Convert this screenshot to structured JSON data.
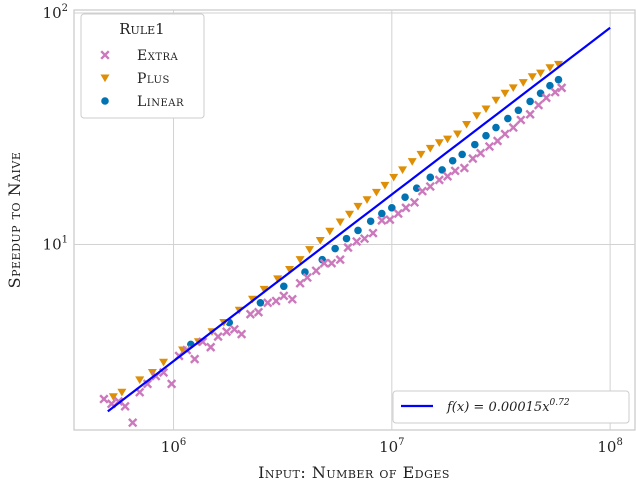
{
  "chart_data": {
    "type": "scatter",
    "x_scale": "log",
    "y_scale": "log",
    "xlim": [
      350000,
      130000000
    ],
    "ylim": [
      1.58,
      103
    ],
    "xlabel": "Input: Number of Edges",
    "ylabel": "Speedup to Naive",
    "x_ticks": [
      {
        "value": 1000000,
        "base": "10",
        "exp": "6"
      },
      {
        "value": 10000000,
        "base": "10",
        "exp": "7"
      },
      {
        "value": 100000000,
        "base": "10",
        "exp": "8"
      }
    ],
    "y_ticks": [
      {
        "value": 10,
        "base": "10",
        "exp": "1"
      },
      {
        "value": 100,
        "base": "10",
        "exp": "2"
      }
    ],
    "grid": true,
    "legend": {
      "title": "Rule1",
      "placement": "top-left",
      "entries": [
        {
          "name": "Extra",
          "marker": "x",
          "color": "#cc78bc"
        },
        {
          "name": "Plus",
          "marker": "triangle-down",
          "color": "#de8f05"
        },
        {
          "name": "Linear",
          "marker": "circle",
          "color": "#0173b2"
        }
      ]
    },
    "series": [
      {
        "name": "Linear",
        "marker": "circle",
        "color": "#0173b2",
        "x": [
          1200000,
          1800000,
          2500000,
          3200000,
          4000000,
          4800000,
          5500000,
          6200000,
          7000000,
          8000000,
          9000000,
          10000000,
          11500000,
          13000000,
          15000000,
          17000000,
          19000000,
          21000000,
          24000000,
          27000000,
          30000000,
          34000000,
          38000000,
          43000000,
          48000000,
          53000000,
          58000000
        ],
        "y": [
          3.7,
          4.6,
          5.6,
          6.6,
          7.6,
          8.6,
          9.6,
          10.6,
          11.5,
          12.6,
          13.6,
          14.4,
          16.0,
          17.5,
          19.5,
          21.0,
          23.0,
          24.5,
          27.0,
          29.5,
          32.0,
          35.0,
          38.0,
          41.5,
          45.0,
          48.5,
          51.5
        ]
      },
      {
        "name": "Plus",
        "marker": "triangle-down",
        "color": "#de8f05",
        "x": [
          530000,
          580000,
          700000,
          800000,
          900000,
          1100000,
          1300000,
          1500000,
          1700000,
          2000000,
          2300000,
          2600000,
          3000000,
          3400000,
          3800000,
          4200000,
          4700000,
          5200000,
          5800000,
          6400000,
          7000000,
          7700000,
          8500000,
          9300000,
          10200000,
          11200000,
          12400000,
          13600000,
          15000000,
          16500000,
          18000000,
          20000000,
          22000000,
          24500000,
          27000000,
          30000000,
          33000000,
          36000000,
          40000000,
          44000000,
          48000000,
          53000000,
          58000000
        ],
        "y": [
          2.2,
          2.3,
          2.6,
          2.8,
          3.1,
          3.5,
          3.8,
          4.2,
          4.6,
          5.2,
          5.8,
          6.4,
          7.1,
          7.8,
          8.6,
          9.5,
          10.4,
          11.4,
          12.5,
          13.5,
          14.6,
          15.6,
          16.8,
          18.0,
          19.5,
          21.0,
          22.8,
          24.5,
          26.0,
          27.5,
          28.5,
          30.0,
          33.0,
          36.0,
          38.5,
          42.0,
          45.0,
          47.5,
          50.0,
          53.0,
          55.0,
          58.0,
          60.0
        ]
      },
      {
        "name": "Extra",
        "marker": "x",
        "color": "#cc78bc",
        "x": [
          480000,
          520000,
          560000,
          600000,
          650000,
          700000,
          760000,
          830000,
          900000,
          980000,
          1060000,
          1150000,
          1250000,
          1360000,
          1480000,
          1600000,
          1750000,
          1900000,
          2050000,
          2250000,
          2450000,
          2700000,
          2950000,
          3200000,
          3500000,
          3800000,
          4100000,
          4500000,
          4900000,
          5300000,
          5800000,
          6300000,
          6900000,
          7500000,
          8200000,
          9000000,
          9800000,
          10700000,
          11600000,
          12700000,
          13800000,
          15000000,
          16500000,
          18000000,
          19500000,
          21500000,
          23500000,
          25500000,
          28000000,
          30500000,
          33000000,
          36000000,
          39000000,
          43000000,
          47000000,
          51000000,
          56000000,
          60000000
        ],
        "y": [
          2.15,
          2.05,
          2.1,
          2.0,
          1.7,
          2.3,
          2.5,
          2.7,
          2.8,
          2.5,
          3.3,
          3.5,
          3.2,
          3.8,
          3.6,
          4.0,
          4.2,
          4.3,
          4.1,
          5.0,
          5.1,
          5.6,
          5.7,
          6.0,
          5.8,
          6.8,
          7.2,
          7.7,
          8.3,
          8.3,
          8.6,
          9.7,
          10.3,
          10.6,
          11.2,
          12.7,
          12.8,
          13.6,
          14.4,
          15.2,
          17.0,
          17.8,
          19.0,
          19.7,
          20.8,
          21.4,
          23.5,
          24.8,
          26.5,
          28.0,
          30.0,
          32.0,
          34.5,
          36.5,
          40.0,
          43.0,
          45.5,
          47.5
        ]
      }
    ],
    "fit": {
      "name": "f(x) = 0.00015x^{0.72}",
      "color": "#0000ff",
      "coefficient": 0.00015,
      "exponent": 0.72,
      "x_range": [
        500000,
        100000000
      ],
      "legend_placement": "bottom-right",
      "label": {
        "prefix": "f(x) = 0.00015x",
        "exponent": "0.72"
      }
    }
  }
}
